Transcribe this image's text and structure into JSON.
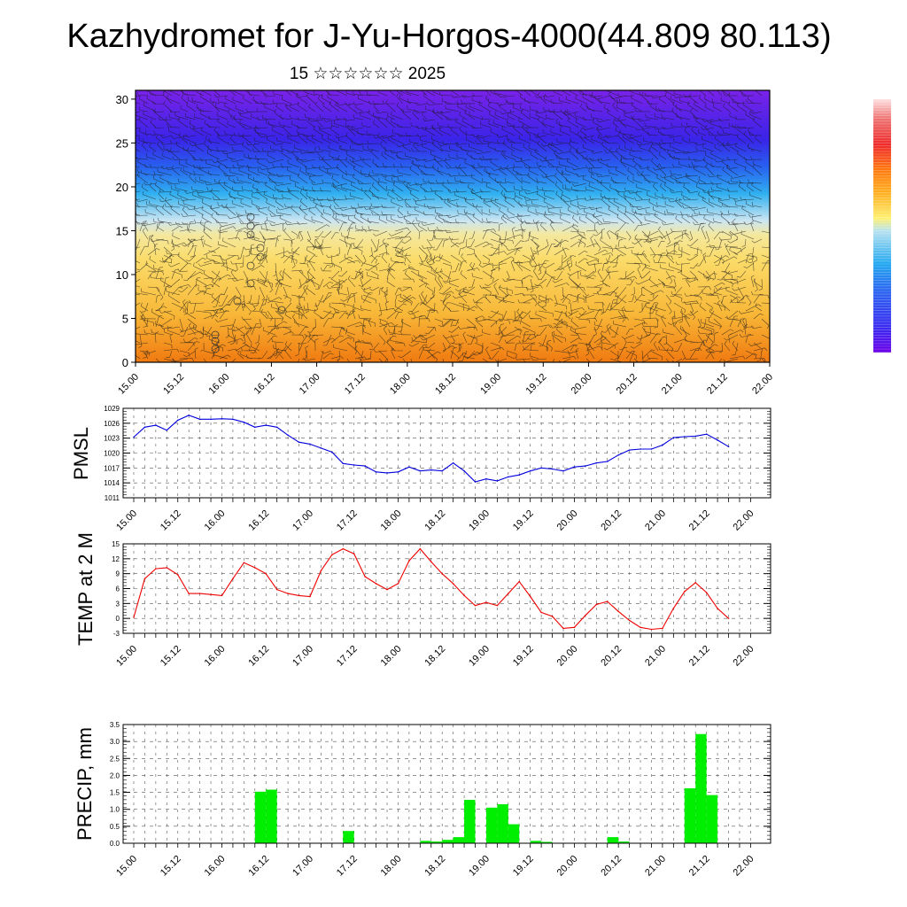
{
  "header": {
    "title": "Kazhydromet for J-Yu-Horgos-4000(44.809 80.113)",
    "subtitle": "15 ☆☆☆☆☆☆ 2025"
  },
  "colors": {
    "pmsl_line": "#0000dd",
    "temp_line": "#ee0000",
    "precip_bar": "#00ee00",
    "colorbar": [
      "#6a00e8",
      "#3a2cf0",
      "#2a68f0",
      "#22a8f0",
      "#9ad8f0",
      "#ffee66",
      "#ffb020",
      "#ff7a10",
      "#ee3030",
      "#ee7070",
      "#ffd0d0"
    ]
  },
  "chart_data": [
    {
      "type": "heatmap",
      "name": "cross-section",
      "x_tick_labels": [
        "15.00",
        "15.12",
        "16.00",
        "16.12",
        "17.00",
        "17.12",
        "18.00",
        "18.12",
        "19.00",
        "19.12",
        "20.00",
        "20.12",
        "21.00",
        "21.12",
        "22.00"
      ],
      "y_tick_labels": [
        "0",
        "5",
        "10",
        "15",
        "20",
        "25",
        "30"
      ],
      "ylim": [
        0,
        31
      ],
      "xlim": [
        0,
        168
      ],
      "overlay": "wind barbs",
      "colorbar": "vertical, right side, no tick labels"
    },
    {
      "type": "line",
      "name": "PMSL",
      "ylabel": "PMSL",
      "x_tick_labels": [
        "15.00",
        "15.12",
        "16.00",
        "16.12",
        "17.00",
        "17.12",
        "18.00",
        "18.12",
        "19.00",
        "19.12",
        "20.00",
        "20.12",
        "21.00",
        "21.12",
        "22.00"
      ],
      "y_tick_labels": [
        "1011",
        "1014",
        "1017",
        "1020",
        "1023",
        "1026",
        "1029"
      ],
      "ylim": [
        1011,
        1029
      ],
      "x_hours": [
        0,
        3,
        6,
        9,
        12,
        15,
        18,
        21,
        24,
        27,
        30,
        33,
        36,
        39,
        42,
        45,
        48,
        51,
        54,
        57,
        60,
        63,
        66,
        69,
        72,
        75,
        78,
        81,
        84,
        87,
        90,
        93,
        96,
        99,
        102,
        105,
        108,
        111,
        114,
        117,
        120,
        123,
        126,
        129,
        132,
        135,
        138,
        141,
        144,
        147,
        150,
        153,
        156,
        159,
        162
      ],
      "values": [
        1023.2,
        1025.2,
        1025.6,
        1024.6,
        1026.6,
        1027.6,
        1026.8,
        1026.8,
        1026.9,
        1026.8,
        1026.2,
        1025.2,
        1025.6,
        1025.2,
        1023.6,
        1022.2,
        1021.8,
        1021.0,
        1020.2,
        1017.9,
        1017.6,
        1017.4,
        1016.2,
        1016.0,
        1016.2,
        1017.2,
        1016.4,
        1016.6,
        1016.4,
        1018.0,
        1016.4,
        1014.2,
        1014.8,
        1014.4,
        1015.2,
        1015.6,
        1016.4,
        1017.0,
        1016.8,
        1016.4,
        1017.2,
        1017.4,
        1018.0,
        1018.3,
        1019.6,
        1020.6,
        1020.8,
        1020.8,
        1021.6,
        1023.1,
        1023.3,
        1023.4,
        1023.8,
        1022.6,
        1021.3
      ]
    },
    {
      "type": "line",
      "name": "TEMP at 2 M",
      "ylabel": "TEMP at 2 M",
      "x_tick_labels": [
        "15.00",
        "15.12",
        "16.00",
        "16.12",
        "17.00",
        "17.12",
        "18.00",
        "18.12",
        "19.00",
        "19.12",
        "20.00",
        "20.12",
        "21.00",
        "21.12",
        "22.00"
      ],
      "y_tick_labels": [
        "-3",
        "0",
        "3",
        "6",
        "9",
        "12",
        "15"
      ],
      "ylim": [
        -3,
        15
      ],
      "x_hours": [
        0,
        3,
        6,
        9,
        12,
        15,
        18,
        21,
        24,
        27,
        30,
        33,
        36,
        39,
        42,
        45,
        48,
        51,
        54,
        57,
        60,
        63,
        66,
        69,
        72,
        75,
        78,
        81,
        84,
        87,
        90,
        93,
        96,
        99,
        102,
        105,
        108,
        111,
        114,
        117,
        120,
        123,
        126,
        129,
        132,
        135,
        138,
        141,
        144,
        147,
        150,
        153,
        156,
        159,
        162
      ],
      "values": [
        0.2,
        8.0,
        10.0,
        10.2,
        8.8,
        5.0,
        5.0,
        4.8,
        4.6,
        8.0,
        11.2,
        10.2,
        9.0,
        5.8,
        5.0,
        4.6,
        4.4,
        9.6,
        12.8,
        14.0,
        13.0,
        8.4,
        7.0,
        5.8,
        7.0,
        11.6,
        14.0,
        11.4,
        9.0,
        7.0,
        4.6,
        2.6,
        3.2,
        2.6,
        5.0,
        7.4,
        4.4,
        1.2,
        0.4,
        -2.0,
        -1.8,
        0.6,
        2.8,
        3.4,
        1.4,
        -0.4,
        -1.8,
        -2.2,
        -2.0,
        2.0,
        5.4,
        7.2,
        5.2,
        2.0,
        0.0
      ]
    },
    {
      "type": "bar",
      "name": "PRECIP, mm",
      "ylabel": "PRECIP, mm",
      "x_tick_labels": [
        "15.00",
        "15.12",
        "16.00",
        "16.12",
        "17.00",
        "17.12",
        "18.00",
        "18.12",
        "19.00",
        "19.12",
        "20.00",
        "20.12",
        "21.00",
        "21.12",
        "22.00"
      ],
      "y_tick_labels": [
        "0.0",
        "0.5",
        "1.0",
        "1.5",
        "2.0",
        "2.5",
        "3.0",
        "3.5"
      ],
      "ylim": [
        0,
        3.5
      ],
      "bar_width_hours": 3,
      "bars": [
        {
          "start_hour": 33,
          "value": 1.52
        },
        {
          "start_hour": 36,
          "value": 1.58
        },
        {
          "start_hour": 57,
          "value": 0.36
        },
        {
          "start_hour": 78,
          "value": 0.07
        },
        {
          "start_hour": 81,
          "value": 0.05
        },
        {
          "start_hour": 84,
          "value": 0.1
        },
        {
          "start_hour": 87,
          "value": 0.18
        },
        {
          "start_hour": 90,
          "value": 1.28
        },
        {
          "start_hour": 96,
          "value": 1.05
        },
        {
          "start_hour": 99,
          "value": 1.15
        },
        {
          "start_hour": 102,
          "value": 0.56
        },
        {
          "start_hour": 108,
          "value": 0.07
        },
        {
          "start_hour": 111,
          "value": 0.04
        },
        {
          "start_hour": 129,
          "value": 0.18
        },
        {
          "start_hour": 132,
          "value": 0.05
        },
        {
          "start_hour": 150,
          "value": 1.62
        },
        {
          "start_hour": 153,
          "value": 3.22
        },
        {
          "start_hour": 156,
          "value": 1.42
        }
      ]
    }
  ]
}
